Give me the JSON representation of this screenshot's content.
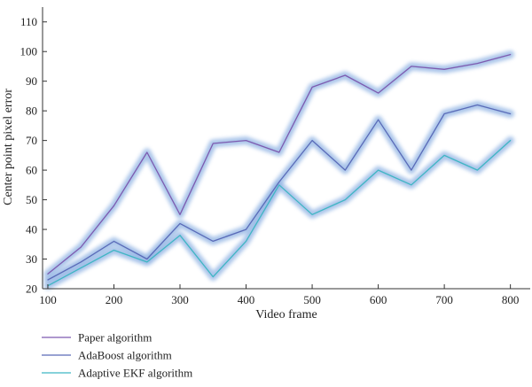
{
  "chart_data": {
    "type": "line",
    "xlabel": "Video frame",
    "ylabel": "Center point pixel error",
    "xlim": [
      92,
      830
    ],
    "ylim": [
      20,
      115
    ],
    "x_ticks": [
      100,
      200,
      300,
      400,
      500,
      600,
      700,
      800
    ],
    "y_ticks": [
      20,
      30,
      40,
      50,
      60,
      70,
      80,
      90,
      100,
      110
    ],
    "grid": false,
    "legend_position": "bottom-left",
    "x": [
      100,
      150,
      200,
      250,
      300,
      350,
      400,
      450,
      500,
      550,
      600,
      650,
      700,
      750,
      800
    ],
    "series": [
      {
        "name": "Paper algorithm",
        "color": "#7d5bb0",
        "values": [
          25,
          34,
          48,
          66,
          45,
          69,
          70,
          66,
          88,
          92,
          86,
          95,
          94,
          96,
          99
        ]
      },
      {
        "name": "AdaBoost algorithm",
        "color": "#5a6bb8",
        "values": [
          23,
          29,
          36,
          30,
          42,
          36,
          40,
          56,
          70,
          60,
          77,
          60,
          79,
          82,
          79
        ]
      },
      {
        "name": "Adaptive EKF algorithm",
        "color": "#3fb6c4",
        "values": [
          21,
          27,
          33,
          29,
          38,
          24,
          36,
          55,
          45,
          50,
          60,
          55,
          65,
          60,
          70
        ]
      }
    ],
    "glow_color": "#8fb2e3"
  }
}
